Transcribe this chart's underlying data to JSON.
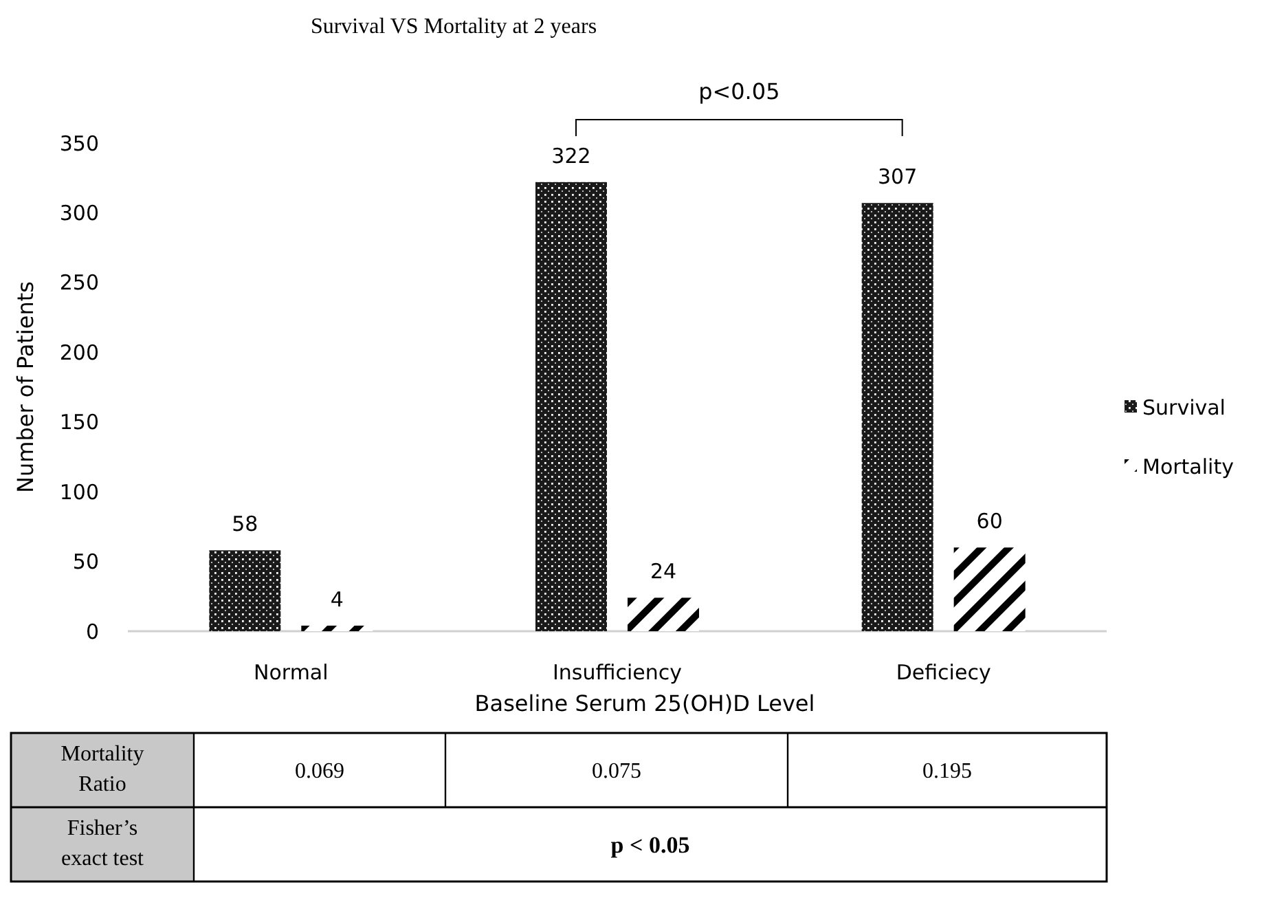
{
  "chart_data": {
    "type": "bar",
    "title": "Survival VS Mortality at 2 years",
    "xlabel": "Baseline Serum 25(OH)D Level",
    "ylabel": "Number of Patients",
    "categories": [
      "Normal",
      "Insufficiency",
      "Deficiecy"
    ],
    "series": [
      {
        "name": "Survival",
        "color": "#1a1a1a",
        "values": [
          58,
          322,
          307
        ]
      },
      {
        "name": "Mortality",
        "color": "#000000",
        "values": [
          4,
          24,
          60
        ]
      }
    ],
    "ylim": [
      0,
      350
    ],
    "yticks": [
      0,
      50,
      100,
      150,
      200,
      250,
      300,
      350
    ],
    "grid": false,
    "legend": "right",
    "data_labels": true,
    "annotations": [
      "p<0.05",
      "Mortality Ratio",
      "0.069",
      "0.075",
      "0.195",
      "Fisher’s exact test",
      "p < 0.05"
    ]
  }
}
